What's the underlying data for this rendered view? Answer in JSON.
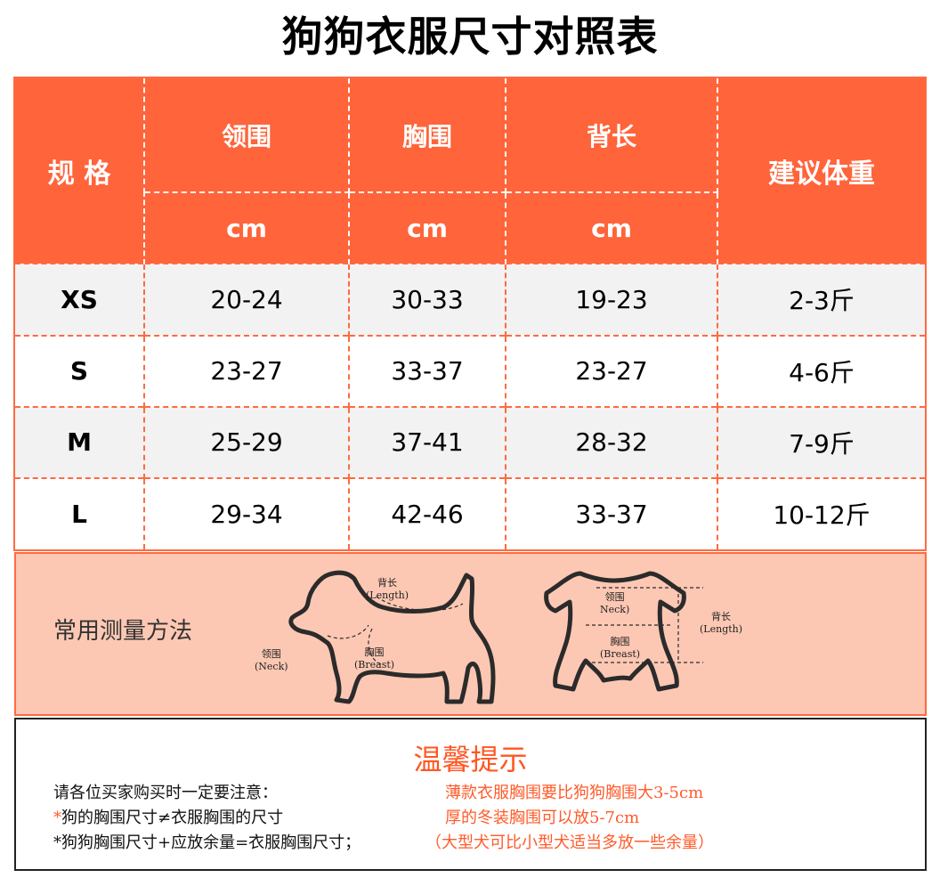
{
  "title": "狗狗衣服尺寸对照表",
  "table": {
    "headers": {
      "size": "规 格",
      "neck": "领围",
      "chest": "胸围",
      "back": "背长",
      "unit": "cm",
      "weight": "建议体重"
    },
    "rows": [
      {
        "size": "XS",
        "neck": "20-24",
        "chest": "30-33",
        "back": "19-23",
        "weight": "2-3斤"
      },
      {
        "size": "S",
        "neck": "23-27",
        "chest": "33-37",
        "back": "23-27",
        "weight": "4-6斤"
      },
      {
        "size": "M",
        "neck": "25-29",
        "chest": "37-41",
        "back": "28-32",
        "weight": "7-9斤"
      },
      {
        "size": "L",
        "neck": "29-34",
        "chest": "42-46",
        "back": "33-37",
        "weight": "10-12斤"
      }
    ]
  },
  "measure": {
    "label": "常用测量方法",
    "dog": {
      "back_cn": "背长",
      "back_en": "(Length)",
      "neck_cn": "领围",
      "neck_en": "(Neck)",
      "chest_cn": "胸围",
      "chest_en": "(Breast)"
    },
    "clothes": {
      "neck_cn": "领围",
      "neck_en": "Neck)",
      "chest_cn": "胸围",
      "chest_en": "(Breast)",
      "back_cn": "背长",
      "back_en": "(Length)"
    }
  },
  "tips": {
    "title": "温馨提示",
    "line1": "请各位买家购买时一定要注意：",
    "line2_star": "*",
    "line2": "狗的胸围尺寸≠衣服胸围的尺寸",
    "line3": "*狗狗胸围尺寸+应放余量=衣服胸围尺寸；",
    "right1": "薄款衣服胸围要比狗狗胸围大3-5cm",
    "right2": "厚的冬装胸围可以放5-7cm",
    "right3": "（大型犬可比小型犬适当多放一些余量）"
  },
  "colors": {
    "accent": "#ff643a",
    "measure_bg": "#fdc8b3",
    "tip_orange": "#ff5b2a"
  }
}
